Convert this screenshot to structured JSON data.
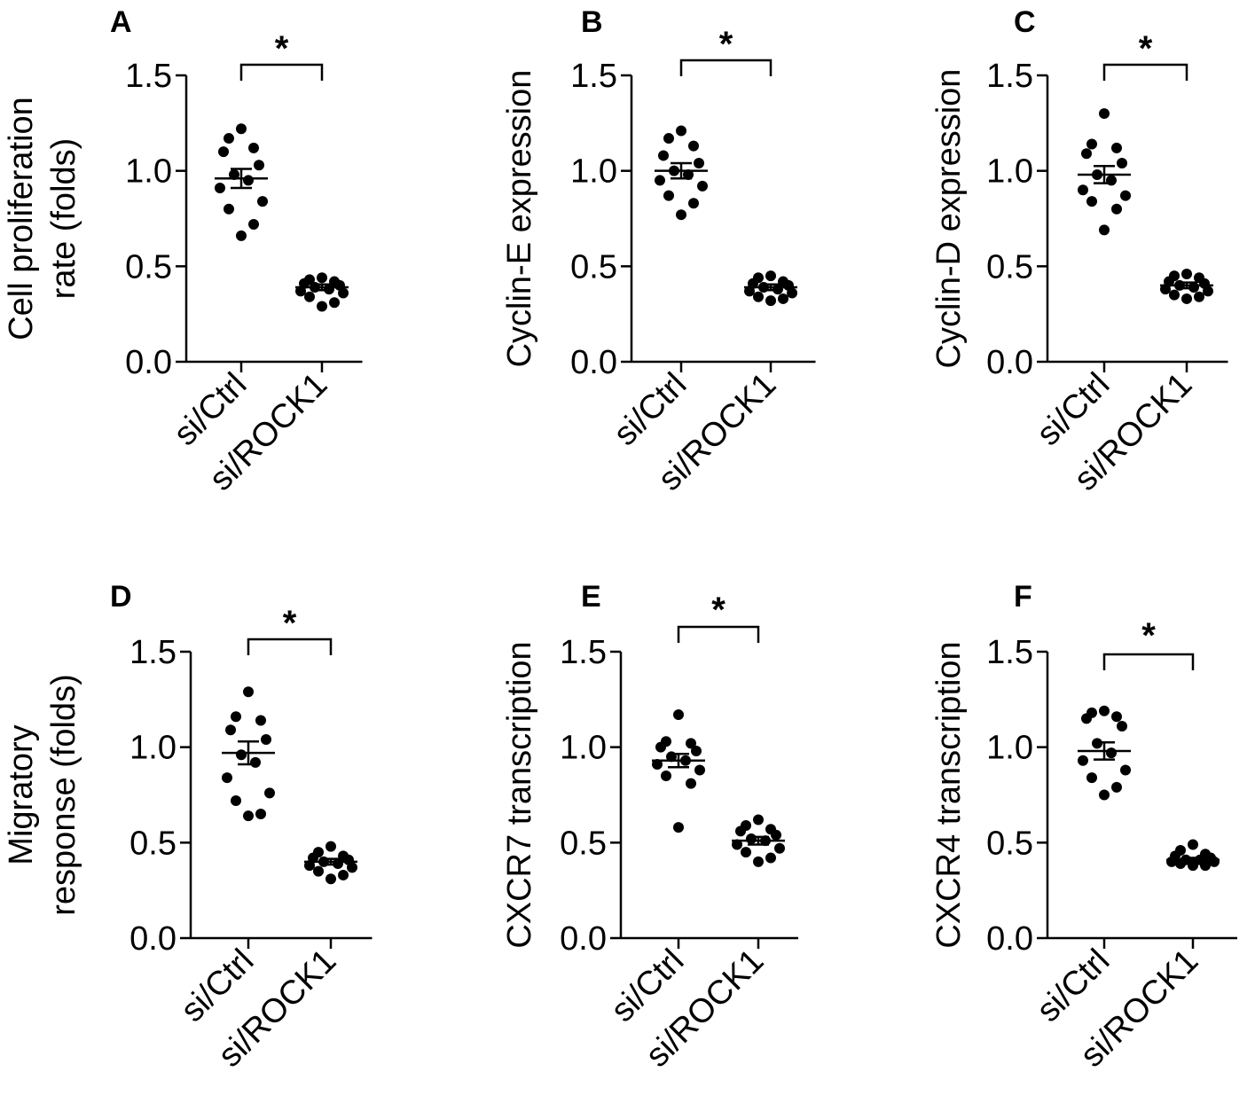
{
  "chart_data": [
    {
      "type": "scatter",
      "panel": "A",
      "ylabel_lines": [
        "Cell proliferation",
        "rate (folds)"
      ],
      "categories": [
        "si/Ctrl",
        "si/ROCK1"
      ],
      "yticks": [
        "0.0",
        "0.5",
        "1.0",
        "1.5"
      ],
      "ylim": [
        0,
        1.5
      ],
      "significance": "*",
      "series": [
        {
          "category": "si/Ctrl",
          "mean": 0.96,
          "sem": 0.05,
          "values": [
            1.22,
            1.17,
            1.12,
            1.1,
            1.03,
            0.98,
            0.95,
            0.91,
            0.84,
            0.8,
            0.72,
            0.66
          ]
        },
        {
          "category": "si/ROCK1",
          "mean": 0.39,
          "sem": 0.015,
          "values": [
            0.44,
            0.43,
            0.42,
            0.41,
            0.4,
            0.39,
            0.38,
            0.37,
            0.36,
            0.34,
            0.31,
            0.29
          ]
        }
      ]
    },
    {
      "type": "scatter",
      "panel": "B",
      "ylabel_lines": [
        "Cyclin-E expression"
      ],
      "categories": [
        "si/Ctrl",
        "si/ROCK1"
      ],
      "yticks": [
        "0.0",
        "0.5",
        "1.0",
        "1.5"
      ],
      "ylim": [
        0,
        1.5
      ],
      "significance": "*",
      "series": [
        {
          "category": "si/Ctrl",
          "mean": 1.0,
          "sem": 0.04,
          "values": [
            1.21,
            1.17,
            1.13,
            1.08,
            1.04,
            1.0,
            0.98,
            0.95,
            0.92,
            0.87,
            0.83,
            0.77
          ]
        },
        {
          "category": "si/ROCK1",
          "mean": 0.39,
          "sem": 0.015,
          "values": [
            0.45,
            0.44,
            0.42,
            0.41,
            0.4,
            0.39,
            0.38,
            0.37,
            0.36,
            0.34,
            0.33,
            0.32
          ]
        }
      ]
    },
    {
      "type": "scatter",
      "panel": "C",
      "ylabel_lines": [
        "Cyclin-D expression"
      ],
      "categories": [
        "si/Ctrl",
        "si/ROCK1"
      ],
      "yticks": [
        "0.0",
        "0.5",
        "1.0",
        "1.5"
      ],
      "ylim": [
        0,
        1.5
      ],
      "significance": "*",
      "series": [
        {
          "category": "si/Ctrl",
          "mean": 0.98,
          "sem": 0.045,
          "values": [
            1.3,
            1.14,
            1.12,
            1.09,
            1.04,
            0.98,
            0.95,
            0.9,
            0.87,
            0.84,
            0.8,
            0.69
          ]
        },
        {
          "category": "si/ROCK1",
          "mean": 0.4,
          "sem": 0.015,
          "values": [
            0.46,
            0.45,
            0.44,
            0.42,
            0.41,
            0.4,
            0.39,
            0.38,
            0.37,
            0.35,
            0.34,
            0.33
          ]
        }
      ]
    },
    {
      "type": "scatter",
      "panel": "D",
      "ylabel_lines": [
        "Migratory",
        "response (folds)"
      ],
      "categories": [
        "si/Ctrl",
        "si/ROCK1"
      ],
      "yticks": [
        "0.0",
        "0.5",
        "1.0",
        "1.5"
      ],
      "ylim": [
        0,
        1.5
      ],
      "significance": "*",
      "series": [
        {
          "category": "si/Ctrl",
          "mean": 0.97,
          "sem": 0.06,
          "values": [
            1.29,
            1.16,
            1.14,
            1.09,
            1.04,
            0.96,
            0.92,
            0.84,
            0.76,
            0.72,
            0.65,
            0.64
          ]
        },
        {
          "category": "si/ROCK1",
          "mean": 0.4,
          "sem": 0.015,
          "values": [
            0.48,
            0.45,
            0.43,
            0.42,
            0.41,
            0.4,
            0.39,
            0.38,
            0.37,
            0.35,
            0.33,
            0.31
          ]
        }
      ]
    },
    {
      "type": "scatter",
      "panel": "E",
      "ylabel_lines": [
        "CXCR7 transcription"
      ],
      "categories": [
        "si/Ctrl",
        "si/ROCK1"
      ],
      "yticks": [
        "0.0",
        "0.5",
        "1.0",
        "1.5"
      ],
      "ylim": [
        0,
        1.5
      ],
      "significance": "*",
      "series": [
        {
          "category": "si/Ctrl",
          "mean": 0.93,
          "sem": 0.035,
          "values": [
            1.17,
            1.03,
            1.02,
            1.0,
            0.98,
            0.95,
            0.93,
            0.91,
            0.88,
            0.85,
            0.81,
            0.58
          ]
        },
        {
          "category": "si/ROCK1",
          "mean": 0.51,
          "sem": 0.02,
          "values": [
            0.62,
            0.59,
            0.57,
            0.56,
            0.54,
            0.52,
            0.51,
            0.49,
            0.47,
            0.45,
            0.42,
            0.4
          ]
        }
      ]
    },
    {
      "type": "scatter",
      "panel": "F",
      "ylabel_lines": [
        "CXCR4 transcription"
      ],
      "categories": [
        "si/Ctrl",
        "si/ROCK1"
      ],
      "yticks": [
        "0.0",
        "0.5",
        "1.0",
        "1.5"
      ],
      "ylim": [
        0,
        1.5
      ],
      "significance": "*",
      "series": [
        {
          "category": "si/Ctrl",
          "mean": 0.98,
          "sem": 0.045,
          "values": [
            1.19,
            1.18,
            1.16,
            1.15,
            1.11,
            1.02,
            0.97,
            0.93,
            0.88,
            0.84,
            0.79,
            0.75
          ]
        },
        {
          "category": "si/ROCK1",
          "mean": 0.41,
          "sem": 0.01,
          "values": [
            0.49,
            0.46,
            0.44,
            0.43,
            0.42,
            0.41,
            0.41,
            0.4,
            0.4,
            0.39,
            0.38,
            0.38
          ]
        }
      ]
    }
  ]
}
